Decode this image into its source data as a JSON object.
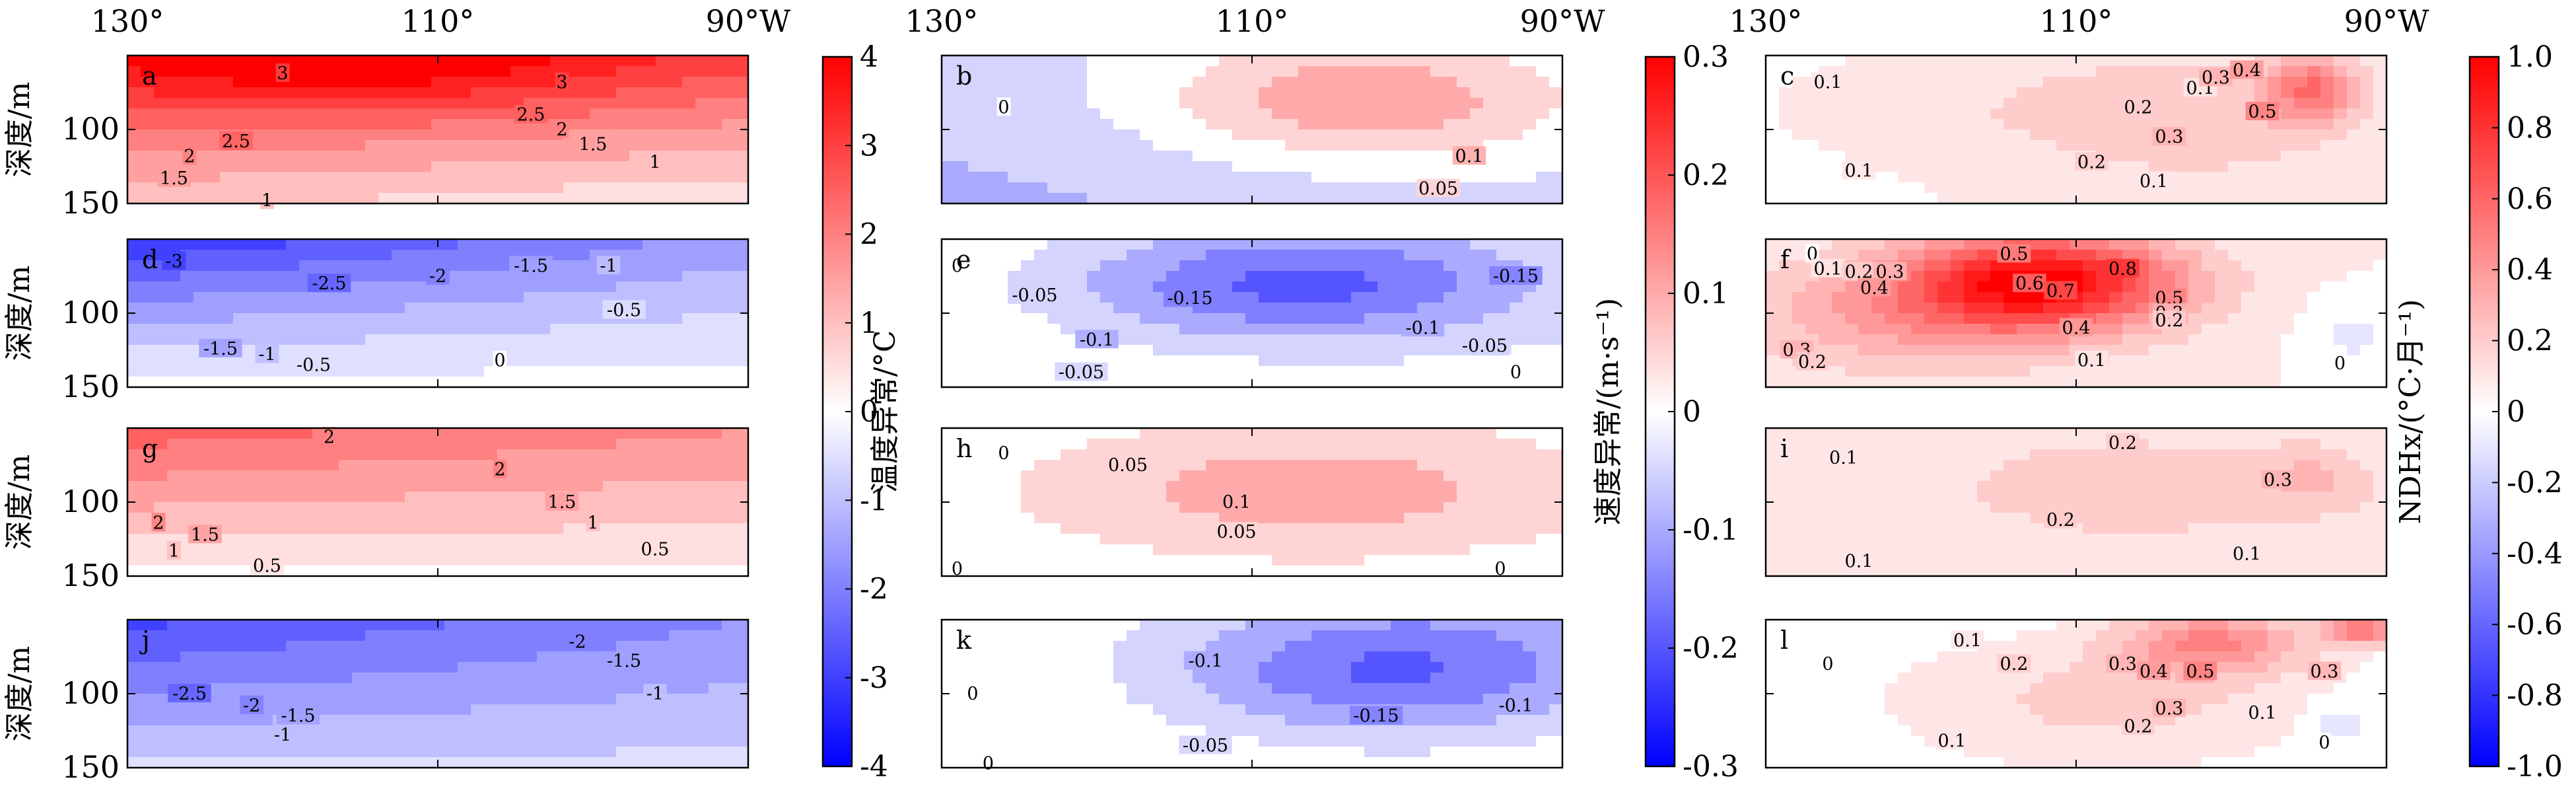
{
  "colorbars": {
    "temperature": {
      "label": "温度异常/°C",
      "ticks": [
        "-4",
        "-3",
        "-2",
        "-1",
        "0",
        "1",
        "2",
        "3",
        "4"
      ]
    },
    "velocity": {
      "label": "速度异常/(m·s⁻¹)",
      "ticks": [
        "-0.3",
        "-0.2",
        "-0.1",
        "0",
        "0.1",
        "0.2",
        "0.3"
      ]
    },
    "ndhx": {
      "label": "NDHx/(°C·月⁻¹)",
      "ticks": [
        "-1.0",
        "-0.8",
        "-0.6",
        "-0.4",
        "-0.2",
        "0",
        "0.2",
        "0.4",
        "0.6",
        "0.8",
        "1.0"
      ]
    }
  },
  "x_ticks": [
    "130°",
    "110°",
    "90°W"
  ],
  "y_ticks": [
    "100",
    "150"
  ],
  "y_label": "深度/m",
  "chart_data": [
    {
      "type": "heatmap",
      "panel": "a",
      "field": "temperature anomaly",
      "xlim": [
        130,
        90
      ],
      "ylim": [
        150,
        50
      ],
      "contour_labels": [
        {
          "v": "3",
          "x": 120,
          "y": 62
        },
        {
          "v": "3",
          "x": 102,
          "y": 68
        },
        {
          "v": "2.5",
          "x": 123,
          "y": 108
        },
        {
          "v": "2.5",
          "x": 104,
          "y": 90
        },
        {
          "v": "2",
          "x": 126,
          "y": 118
        },
        {
          "v": "2",
          "x": 102,
          "y": 100
        },
        {
          "v": "1.5",
          "x": 127,
          "y": 133
        },
        {
          "v": "1.5",
          "x": 100,
          "y": 110
        },
        {
          "v": "1",
          "x": 96,
          "y": 122
        },
        {
          "v": "1",
          "x": 121,
          "y": 148
        }
      ]
    },
    {
      "type": "heatmap",
      "panel": "b",
      "field": "velocity anomaly",
      "xlim": [
        130,
        90
      ],
      "ylim": [
        150,
        50
      ],
      "contour_labels": [
        {
          "v": "0",
          "x": 126,
          "y": 85
        },
        {
          "v": "0.1",
          "x": 96,
          "y": 118
        },
        {
          "v": "0.05",
          "x": 98,
          "y": 140
        }
      ]
    },
    {
      "type": "heatmap",
      "panel": "c",
      "field": "NDHx",
      "xlim": [
        130,
        90
      ],
      "ylim": [
        150,
        50
      ],
      "contour_labels": [
        {
          "v": "0.1",
          "x": 126,
          "y": 68
        },
        {
          "v": "0.1",
          "x": 102,
          "y": 72
        },
        {
          "v": "0.2",
          "x": 106,
          "y": 85
        },
        {
          "v": "0.3",
          "x": 101,
          "y": 65
        },
        {
          "v": "0.4",
          "x": 99,
          "y": 60
        },
        {
          "v": "0.5",
          "x": 98,
          "y": 88
        },
        {
          "v": "0.3",
          "x": 104,
          "y": 105
        },
        {
          "v": "0.2",
          "x": 109,
          "y": 122
        },
        {
          "v": "0.1",
          "x": 124,
          "y": 128
        },
        {
          "v": "0.1",
          "x": 105,
          "y": 135
        }
      ]
    },
    {
      "type": "heatmap",
      "panel": "d",
      "field": "temperature anomaly",
      "xlim": [
        130,
        90
      ],
      "ylim": [
        150,
        50
      ],
      "contour_labels": [
        {
          "v": "-3",
          "x": 127,
          "y": 65
        },
        {
          "v": "-2.5",
          "x": 117,
          "y": 80
        },
        {
          "v": "-2",
          "x": 110,
          "y": 75
        },
        {
          "v": "-1.5",
          "x": 104,
          "y": 68
        },
        {
          "v": "-1",
          "x": 99,
          "y": 68
        },
        {
          "v": "-0.5",
          "x": 98,
          "y": 98
        },
        {
          "v": "-1.5",
          "x": 124,
          "y": 124
        },
        {
          "v": "-1",
          "x": 121,
          "y": 128
        },
        {
          "v": "-0.5",
          "x": 118,
          "y": 135
        },
        {
          "v": "0",
          "x": 106,
          "y": 132
        }
      ]
    },
    {
      "type": "heatmap",
      "panel": "e",
      "field": "velocity anomaly",
      "xlim": [
        130,
        90
      ],
      "ylim": [
        150,
        50
      ],
      "contour_labels": [
        {
          "v": "0",
          "x": 129,
          "y": 68
        },
        {
          "v": "-0.05",
          "x": 124,
          "y": 88
        },
        {
          "v": "-0.15",
          "x": 114,
          "y": 90
        },
        {
          "v": "-0.15",
          "x": 93,
          "y": 75
        },
        {
          "v": "-0.1",
          "x": 120,
          "y": 118
        },
        {
          "v": "-0.1",
          "x": 99,
          "y": 110
        },
        {
          "v": "-0.05",
          "x": 95,
          "y": 122
        },
        {
          "v": "-0.05",
          "x": 121,
          "y": 140
        },
        {
          "v": "0",
          "x": 93,
          "y": 140
        }
      ]
    },
    {
      "type": "heatmap",
      "panel": "f",
      "field": "NDHx",
      "xlim": [
        130,
        90
      ],
      "ylim": [
        150,
        50
      ],
      "contour_labels": [
        {
          "v": "0",
          "x": 127,
          "y": 60
        },
        {
          "v": "0.1",
          "x": 126,
          "y": 70
        },
        {
          "v": "0.2",
          "x": 124,
          "y": 72
        },
        {
          "v": "0.3",
          "x": 122,
          "y": 72
        },
        {
          "v": "0.4",
          "x": 123,
          "y": 83
        },
        {
          "v": "0.5",
          "x": 114,
          "y": 60
        },
        {
          "v": "0.6",
          "x": 113,
          "y": 80
        },
        {
          "v": "0.7",
          "x": 111,
          "y": 85
        },
        {
          "v": "0.8",
          "x": 107,
          "y": 70
        },
        {
          "v": "0.5",
          "x": 104,
          "y": 90
        },
        {
          "v": "0.3",
          "x": 104,
          "y": 100
        },
        {
          "v": "0.2",
          "x": 104,
          "y": 105
        },
        {
          "v": "0.4",
          "x": 110,
          "y": 110
        },
        {
          "v": "0.3",
          "x": 128,
          "y": 125
        },
        {
          "v": "0.2",
          "x": 127,
          "y": 133
        },
        {
          "v": "0.1",
          "x": 109,
          "y": 132
        },
        {
          "v": "0",
          "x": 93,
          "y": 134
        }
      ]
    },
    {
      "type": "heatmap",
      "panel": "g",
      "field": "temperature anomaly",
      "xlim": [
        130,
        90
      ],
      "ylim": [
        150,
        50
      ],
      "contour_labels": [
        {
          "v": "2",
          "x": 117,
          "y": 56
        },
        {
          "v": "2",
          "x": 106,
          "y": 78
        },
        {
          "v": "1.5",
          "x": 102,
          "y": 100
        },
        {
          "v": "1",
          "x": 100,
          "y": 114
        },
        {
          "v": "2",
          "x": 128,
          "y": 114
        },
        {
          "v": "1.5",
          "x": 125,
          "y": 122
        },
        {
          "v": "1",
          "x": 127,
          "y": 133
        },
        {
          "v": "0.5",
          "x": 121,
          "y": 143
        },
        {
          "v": "0.5",
          "x": 96,
          "y": 132
        }
      ]
    },
    {
      "type": "heatmap",
      "panel": "h",
      "field": "velocity anomaly",
      "xlim": [
        130,
        90
      ],
      "ylim": [
        150,
        50
      ],
      "contour_labels": [
        {
          "v": "0",
          "x": 126,
          "y": 67
        },
        {
          "v": "0.05",
          "x": 118,
          "y": 75
        },
        {
          "v": "0.1",
          "x": 111,
          "y": 100
        },
        {
          "v": "0.05",
          "x": 111,
          "y": 120
        },
        {
          "v": "0",
          "x": 129,
          "y": 145
        },
        {
          "v": "0",
          "x": 94,
          "y": 145
        }
      ]
    },
    {
      "type": "heatmap",
      "panel": "i",
      "field": "NDHx",
      "xlim": [
        130,
        90
      ],
      "ylim": [
        150,
        50
      ],
      "contour_labels": [
        {
          "v": "0.2",
          "x": 107,
          "y": 60
        },
        {
          "v": "0.1",
          "x": 125,
          "y": 70
        },
        {
          "v": "0.3",
          "x": 97,
          "y": 85
        },
        {
          "v": "0.2",
          "x": 111,
          "y": 112
        },
        {
          "v": "0.1",
          "x": 124,
          "y": 140
        },
        {
          "v": "0.1",
          "x": 99,
          "y": 135
        }
      ]
    },
    {
      "type": "heatmap",
      "panel": "j",
      "field": "temperature anomaly",
      "xlim": [
        130,
        90
      ],
      "ylim": [
        150,
        50
      ],
      "contour_labels": [
        {
          "v": "-2",
          "x": 101,
          "y": 65
        },
        {
          "v": "-1.5",
          "x": 98,
          "y": 78
        },
        {
          "v": "-1",
          "x": 96,
          "y": 100
        },
        {
          "v": "-2.5",
          "x": 126,
          "y": 100
        },
        {
          "v": "-2",
          "x": 122,
          "y": 108
        },
        {
          "v": "-1.5",
          "x": 119,
          "y": 115
        },
        {
          "v": "-1",
          "x": 120,
          "y": 128
        }
      ]
    },
    {
      "type": "heatmap",
      "panel": "k",
      "field": "velocity anomaly",
      "xlim": [
        130,
        90
      ],
      "ylim": [
        150,
        50
      ],
      "contour_labels": [
        {
          "v": "-0.1",
          "x": 113,
          "y": 78
        },
        {
          "v": "-0.15",
          "x": 102,
          "y": 115
        },
        {
          "v": "-0.1",
          "x": 93,
          "y": 108
        },
        {
          "v": "0",
          "x": 128,
          "y": 100
        },
        {
          "v": "-0.05",
          "x": 113,
          "y": 135
        },
        {
          "v": "0",
          "x": 127,
          "y": 147
        }
      ]
    },
    {
      "type": "heatmap",
      "panel": "l",
      "field": "NDHx",
      "xlim": [
        130,
        90
      ],
      "ylim": [
        150,
        50
      ],
      "contour_labels": [
        {
          "v": "0",
          "x": 126,
          "y": 80
        },
        {
          "v": "0.1",
          "x": 117,
          "y": 64
        },
        {
          "v": "0.2",
          "x": 114,
          "y": 80
        },
        {
          "v": "0.3",
          "x": 107,
          "y": 80
        },
        {
          "v": "0.4",
          "x": 105,
          "y": 85
        },
        {
          "v": "0.5",
          "x": 102,
          "y": 85
        },
        {
          "v": "0.3",
          "x": 94,
          "y": 85
        },
        {
          "v": "0.3",
          "x": 104,
          "y": 110
        },
        {
          "v": "0.2",
          "x": 106,
          "y": 122
        },
        {
          "v": "0.1",
          "x": 98,
          "y": 113
        },
        {
          "v": "0.1",
          "x": 118,
          "y": 132
        },
        {
          "v": "0",
          "x": 94,
          "y": 133
        }
      ]
    }
  ]
}
